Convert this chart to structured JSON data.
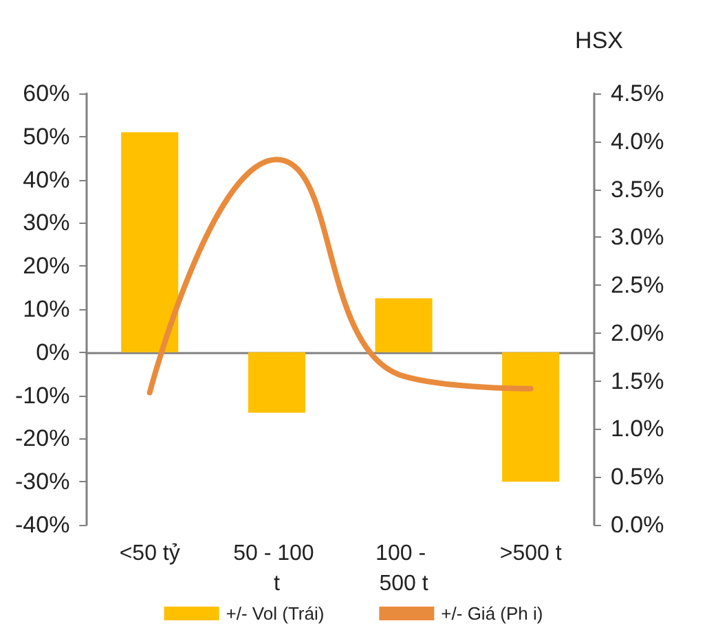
{
  "chart_data": {
    "type": "bar",
    "title": "HSX",
    "categories": [
      "<50 tỷ",
      "50 - 100 t",
      "100 - 500 t",
      ">500 t"
    ],
    "series": [
      {
        "name": "+/- Vol (Trái)",
        "color": "#ffc000",
        "values": [
          51,
          -14,
          12.5,
          -30
        ]
      },
      {
        "name": "+/- Giá (Ph i)",
        "type": "line",
        "axis": "y2",
        "color": "#e98b3c",
        "values": [
          1.38,
          3.81,
          1.55,
          1.42
        ]
      }
    ],
    "ylim": [
      -40,
      60
    ],
    "yticks": [
      {
        "value": -40,
        "label": "-40%"
      },
      {
        "value": -30,
        "label": "-30%"
      },
      {
        "value": -20,
        "label": "-20%"
      },
      {
        "value": -10,
        "label": "-10%"
      },
      {
        "value": 0,
        "label": "0%"
      },
      {
        "value": 10,
        "label": "10%"
      },
      {
        "value": 20,
        "label": "20%"
      },
      {
        "value": 30,
        "label": "30%"
      },
      {
        "value": 40,
        "label": "40%"
      },
      {
        "value": 50,
        "label": "50%"
      },
      {
        "value": 60,
        "label": "60%"
      }
    ],
    "y2lim": [
      0,
      4.5
    ],
    "y2ticks": [
      {
        "value": 0,
        "label": "0.0%"
      },
      {
        "value": 0.5,
        "label": "0.5%"
      },
      {
        "value": 1,
        "label": "1.0%"
      },
      {
        "value": 1.5,
        "label": "1.5%"
      },
      {
        "value": 2,
        "label": "2.0%"
      },
      {
        "value": 2.5,
        "label": "2.5%"
      },
      {
        "value": 3,
        "label": "3.0%"
      },
      {
        "value": 3.5,
        "label": "3.5%"
      },
      {
        "value": 4,
        "label": "4.0%"
      },
      {
        "value": 4.5,
        "label": "4.5%"
      }
    ],
    "legend": "bottom",
    "marker": "none",
    "line_style": "solid"
  }
}
